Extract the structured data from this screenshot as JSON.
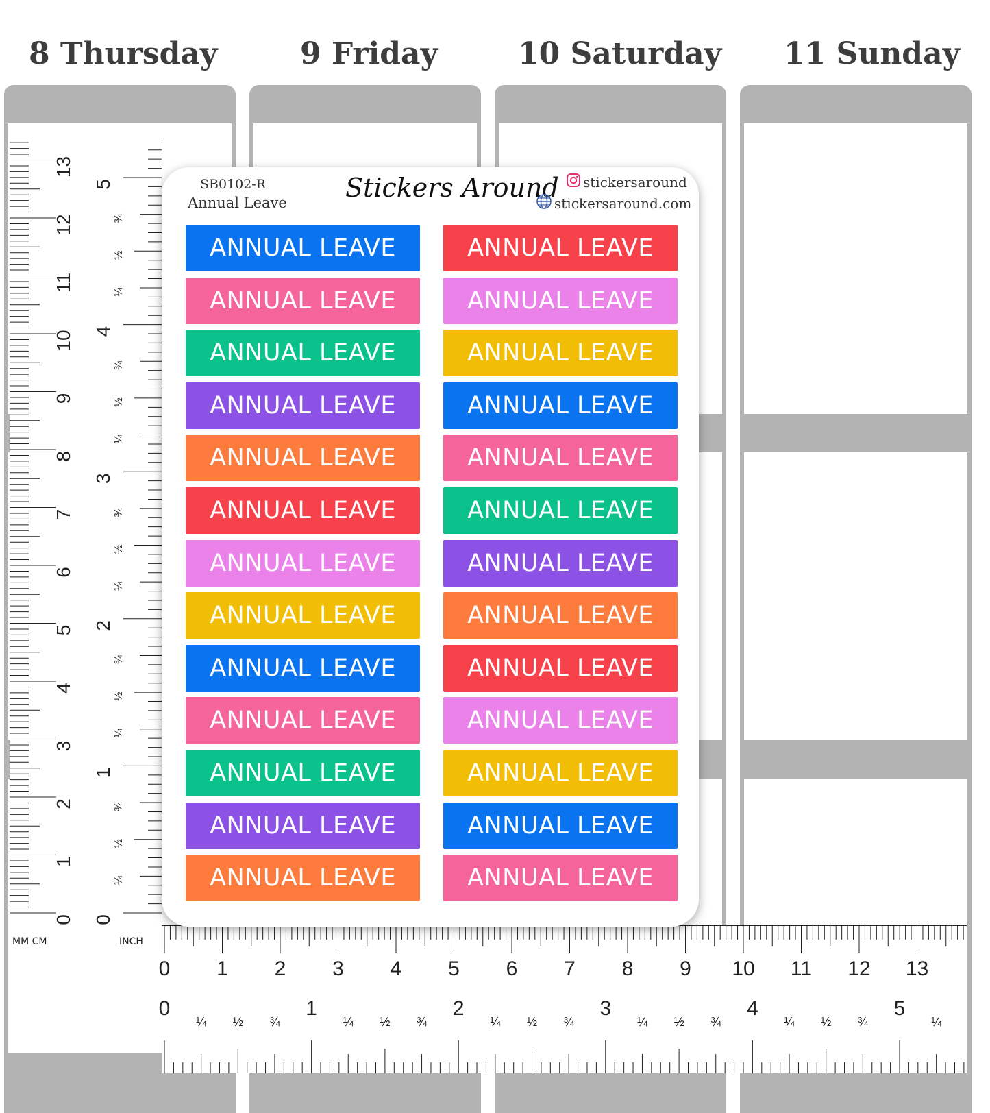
{
  "days": [
    {
      "label": "8 Thursday"
    },
    {
      "label": "9 Friday"
    },
    {
      "label": "10 Saturday"
    },
    {
      "label": "11 Sunday"
    }
  ],
  "sheet": {
    "code": "SB0102-R",
    "subtitle": "Annual Leave",
    "brand": "Stickers Around",
    "instagram": "stickersaround",
    "website": "stickersaround.com",
    "instagram_icon": "instagram-icon",
    "website_icon": "globe-icon"
  },
  "sticker_label": "ANNUAL LEAVE",
  "palette": {
    "blue": "#0a74f0",
    "pink": "#f5649b",
    "teal": "#0cc28c",
    "purple": "#8c52e6",
    "orange": "#fd7b3d",
    "red": "#f8424b",
    "lilac": "#ea82ea",
    "yellow": "#f1bd05",
    "planner_gray": "#b3b3b3"
  },
  "stickers_left": [
    "blue",
    "pink",
    "teal",
    "purple",
    "orange",
    "red",
    "lilac",
    "yellow",
    "blue",
    "pink",
    "teal",
    "purple",
    "orange"
  ],
  "stickers_right": [
    "red",
    "lilac",
    "yellow",
    "blue",
    "pink",
    "teal",
    "purple",
    "orange",
    "red",
    "lilac",
    "yellow",
    "blue",
    "pink"
  ],
  "ruler_vertical": {
    "unit_labels": "MM CM",
    "inch_label": "INCH",
    "cm_numbers": [
      "13",
      "12",
      "11",
      "10",
      "9",
      "8",
      "7",
      "6",
      "5",
      "4",
      "3",
      "2",
      "1",
      "0"
    ],
    "inch_numbers": [
      "5",
      "4",
      "3",
      "2",
      "1",
      "0"
    ],
    "fraction_labels": [
      "¾",
      "½",
      "¼"
    ]
  },
  "ruler_horizontal": {
    "unit_label_cm": "MM CM",
    "unit_label_inch": "INCH",
    "cm_numbers": [
      "0",
      "1",
      "2",
      "3",
      "4",
      "5",
      "6",
      "7",
      "8",
      "9",
      "10",
      "11",
      "12",
      "13"
    ],
    "inch_numbers": [
      "0",
      "1",
      "2",
      "3",
      "4",
      "5"
    ],
    "fraction_labels": [
      "¼",
      "½",
      "¾"
    ]
  }
}
